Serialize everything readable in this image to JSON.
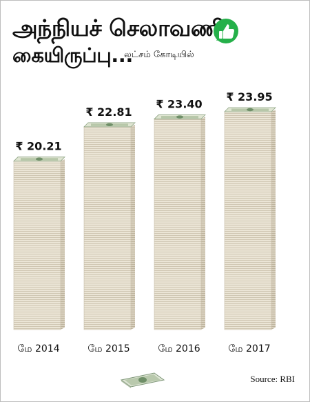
{
  "header": {
    "title_line1": "அந்நியச் செலாவணி",
    "title_line2": "கையிருப்பு...",
    "unit_note": "லட்சம் கோடியில்"
  },
  "footer": {
    "source": "Source: RBI"
  },
  "icons": {
    "header_icon": "whatsapp-thumbs-up-icon",
    "footer_icon": "dollar-bill-icon"
  },
  "colors": {
    "accent_green": "#25b04a",
    "bill_green": "#6f9a6a",
    "stack_face": "#e6dfcf",
    "stack_side": "#cfc6b2"
  },
  "chart_data": {
    "type": "bar",
    "categories": [
      "மே 2014",
      "மே 2015",
      "மே 2016",
      "மே 2017"
    ],
    "values": [
      20.21,
      22.81,
      23.4,
      23.95
    ],
    "value_labels": [
      "₹ 20.21",
      "₹ 22.81",
      "₹ 23.40",
      "₹ 23.95"
    ],
    "title": "அந்நியச் செலாவணி கையிருப்பு...",
    "ylabel": "லட்சம் கோடியில்",
    "ylim": [
      0,
      24
    ]
  }
}
